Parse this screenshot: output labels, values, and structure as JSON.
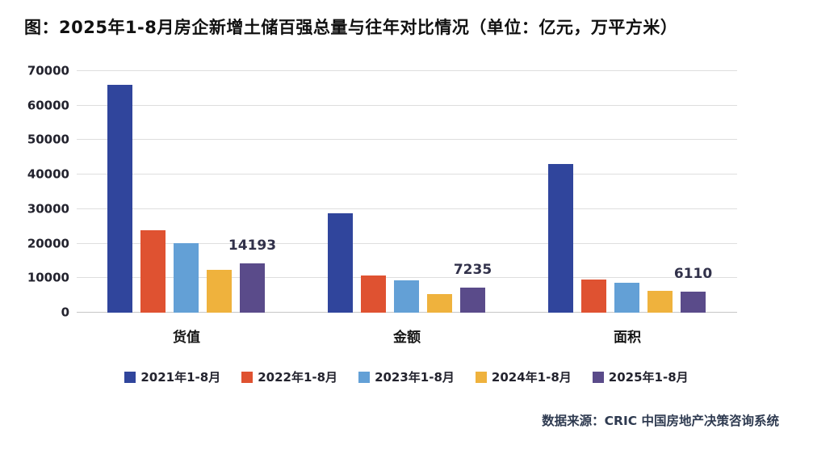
{
  "title": "图：2025年1-8月房企新增土储百强总量与往年对比情况（单位：亿元，万平方米）",
  "source": "数据来源：CRIC 中国房地产决策咨询系统",
  "colors": {
    "grid": "#dedede",
    "axis_baseline": "#c6c6c6",
    "title_text": "#111111",
    "tick_text": "#23232e",
    "data_label_text": "#31314a",
    "source_text": "#2e3a50"
  },
  "chart_data": {
    "type": "bar",
    "title": "图：2025年1-8月房企新增土储百强总量与往年对比情况（单位：亿元，万平方米）",
    "categories": [
      "货值",
      "金额",
      "面积"
    ],
    "series": [
      {
        "name": "2021年1-8月",
        "color": "#30459c",
        "values": [
          66000,
          28700,
          43000
        ]
      },
      {
        "name": "2022年1-8月",
        "color": "#df5231",
        "values": [
          24000,
          10800,
          9500
        ]
      },
      {
        "name": "2023年1-8月",
        "color": "#63a0d6",
        "values": [
          20200,
          9400,
          8600
        ]
      },
      {
        "name": "2024年1-8月",
        "color": "#efb23d",
        "values": [
          12300,
          5300,
          6400
        ]
      },
      {
        "name": "2025年1-8月",
        "color": "#5a4b8a",
        "values": [
          14193,
          7235,
          6110
        ],
        "show_labels": true
      }
    ],
    "data_labels": [
      "14193",
      "7235",
      "6110"
    ],
    "xlabel": "",
    "ylabel": "",
    "ylim": [
      0,
      70000
    ],
    "yticks": [
      0,
      10000,
      20000,
      30000,
      40000,
      50000,
      60000,
      70000
    ],
    "grid": true,
    "legend_position": "bottom",
    "data_source": "数据来源：CRIC 中国房地产决策咨询系统"
  }
}
